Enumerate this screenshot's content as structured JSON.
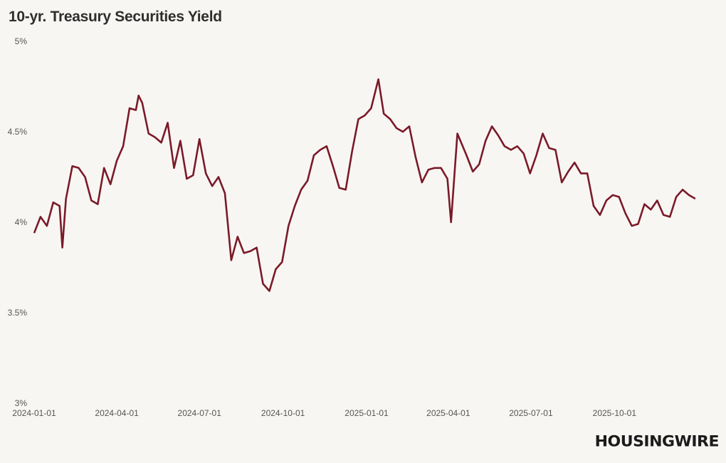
{
  "chart_data": {
    "type": "line",
    "title": "10-yr. Treasury Securities Yield",
    "xlabel": "",
    "ylabel": "",
    "ylim": [
      3,
      5
    ],
    "xlim": [
      "2024-01-01",
      "2025-12-31"
    ],
    "grid": false,
    "y_ticks": [
      {
        "v": 3,
        "label": "3%"
      },
      {
        "v": 3.5,
        "label": "3.5%"
      },
      {
        "v": 4,
        "label": "4%"
      },
      {
        "v": 4.5,
        "label": "4.5%"
      },
      {
        "v": 5,
        "label": "5%"
      }
    ],
    "x_ticks": [
      "2024-01-01",
      "2024-04-01",
      "2024-07-01",
      "2024-10-01",
      "2025-01-01",
      "2025-04-01",
      "2025-07-01",
      "2025-10-01"
    ],
    "line_color": "#7a1a28",
    "series": [
      {
        "points": [
          [
            "2024-01-01",
            3.94
          ],
          [
            "2024-01-08",
            4.03
          ],
          [
            "2024-01-15",
            3.98
          ],
          [
            "2024-01-22",
            4.11
          ],
          [
            "2024-01-29",
            4.09
          ],
          [
            "2024-02-01",
            3.86
          ],
          [
            "2024-02-05",
            4.13
          ],
          [
            "2024-02-12",
            4.31
          ],
          [
            "2024-02-19",
            4.3
          ],
          [
            "2024-02-26",
            4.25
          ],
          [
            "2024-03-04",
            4.12
          ],
          [
            "2024-03-11",
            4.1
          ],
          [
            "2024-03-18",
            4.3
          ],
          [
            "2024-03-25",
            4.21
          ],
          [
            "2024-04-01",
            4.34
          ],
          [
            "2024-04-08",
            4.42
          ],
          [
            "2024-04-15",
            4.63
          ],
          [
            "2024-04-22",
            4.62
          ],
          [
            "2024-04-25",
            4.7
          ],
          [
            "2024-04-29",
            4.66
          ],
          [
            "2024-05-06",
            4.49
          ],
          [
            "2024-05-13",
            4.47
          ],
          [
            "2024-05-20",
            4.44
          ],
          [
            "2024-05-27",
            4.55
          ],
          [
            "2024-06-03",
            4.3
          ],
          [
            "2024-06-10",
            4.45
          ],
          [
            "2024-06-17",
            4.24
          ],
          [
            "2024-06-24",
            4.26
          ],
          [
            "2024-07-01",
            4.46
          ],
          [
            "2024-07-08",
            4.27
          ],
          [
            "2024-07-15",
            4.2
          ],
          [
            "2024-07-22",
            4.25
          ],
          [
            "2024-07-29",
            4.16
          ],
          [
            "2024-08-05",
            3.79
          ],
          [
            "2024-08-12",
            3.92
          ],
          [
            "2024-08-19",
            3.83
          ],
          [
            "2024-08-26",
            3.84
          ],
          [
            "2024-09-02",
            3.86
          ],
          [
            "2024-09-09",
            3.66
          ],
          [
            "2024-09-16",
            3.62
          ],
          [
            "2024-09-23",
            3.74
          ],
          [
            "2024-09-30",
            3.78
          ],
          [
            "2024-10-07",
            3.98
          ],
          [
            "2024-10-14",
            4.09
          ],
          [
            "2024-10-21",
            4.18
          ],
          [
            "2024-10-28",
            4.23
          ],
          [
            "2024-11-04",
            4.37
          ],
          [
            "2024-11-11",
            4.4
          ],
          [
            "2024-11-18",
            4.42
          ],
          [
            "2024-11-25",
            4.31
          ],
          [
            "2024-12-02",
            4.19
          ],
          [
            "2024-12-09",
            4.18
          ],
          [
            "2024-12-16",
            4.39
          ],
          [
            "2024-12-23",
            4.57
          ],
          [
            "2024-12-30",
            4.59
          ],
          [
            "2025-01-06",
            4.63
          ],
          [
            "2025-01-14",
            4.79
          ],
          [
            "2025-01-20",
            4.6
          ],
          [
            "2025-01-27",
            4.57
          ],
          [
            "2025-02-03",
            4.52
          ],
          [
            "2025-02-10",
            4.5
          ],
          [
            "2025-02-17",
            4.53
          ],
          [
            "2025-02-24",
            4.36
          ],
          [
            "2025-03-03",
            4.22
          ],
          [
            "2025-03-10",
            4.29
          ],
          [
            "2025-03-17",
            4.3
          ],
          [
            "2025-03-24",
            4.3
          ],
          [
            "2025-03-31",
            4.24
          ],
          [
            "2025-04-04",
            4.0
          ],
          [
            "2025-04-11",
            4.49
          ],
          [
            "2025-04-21",
            4.37
          ],
          [
            "2025-04-28",
            4.28
          ],
          [
            "2025-05-05",
            4.32
          ],
          [
            "2025-05-12",
            4.45
          ],
          [
            "2025-05-19",
            4.53
          ],
          [
            "2025-05-26",
            4.48
          ],
          [
            "2025-06-02",
            4.42
          ],
          [
            "2025-06-09",
            4.4
          ],
          [
            "2025-06-16",
            4.42
          ],
          [
            "2025-06-23",
            4.38
          ],
          [
            "2025-06-30",
            4.27
          ],
          [
            "2025-07-07",
            4.37
          ],
          [
            "2025-07-14",
            4.49
          ],
          [
            "2025-07-21",
            4.41
          ],
          [
            "2025-07-28",
            4.4
          ],
          [
            "2025-08-04",
            4.22
          ],
          [
            "2025-08-11",
            4.28
          ],
          [
            "2025-08-18",
            4.33
          ],
          [
            "2025-08-25",
            4.27
          ],
          [
            "2025-09-01",
            4.27
          ],
          [
            "2025-09-08",
            4.09
          ],
          [
            "2025-09-15",
            4.04
          ],
          [
            "2025-09-22",
            4.12
          ],
          [
            "2025-09-29",
            4.15
          ],
          [
            "2025-10-06",
            4.14
          ],
          [
            "2025-10-13",
            4.05
          ],
          [
            "2025-10-20",
            3.98
          ],
          [
            "2025-10-27",
            3.99
          ],
          [
            "2025-11-03",
            4.1
          ],
          [
            "2025-11-10",
            4.07
          ],
          [
            "2025-11-17",
            4.12
          ],
          [
            "2025-11-24",
            4.04
          ],
          [
            "2025-12-01",
            4.03
          ],
          [
            "2025-12-08",
            4.14
          ],
          [
            "2025-12-15",
            4.18
          ],
          [
            "2025-12-22",
            4.15
          ],
          [
            "2025-12-29",
            4.13
          ]
        ]
      }
    ]
  },
  "logo": "HOUSINGWIRE"
}
